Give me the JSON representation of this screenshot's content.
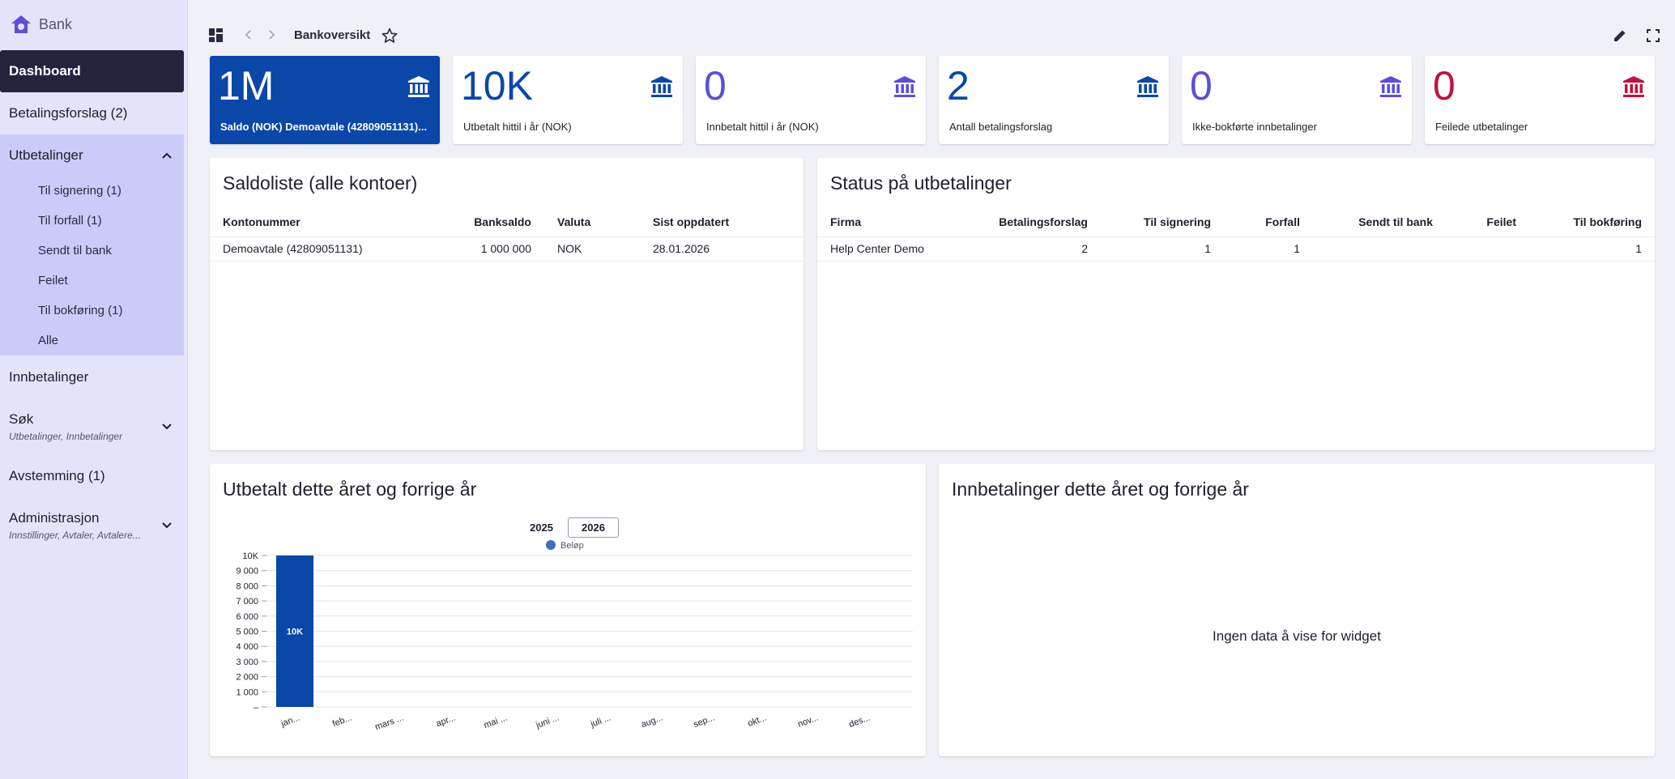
{
  "app": {
    "name": "Bank"
  },
  "sidebar": {
    "dashboard": "Dashboard",
    "betalingsforslag": "Betalingsforslag (2)",
    "utbetalinger": "Utbetalinger",
    "utbetalinger_items": [
      "Til signering (1)",
      "Til forfall (1)",
      "Sendt til bank",
      "Feilet",
      "Til bokføring (1)",
      "Alle"
    ],
    "innbetalinger": "Innbetalinger",
    "sok": "Søk",
    "sok_sub": "Utbetalinger, Innbetalinger",
    "avstemming": "Avstemming (1)",
    "administrasjon": "Administrasjon",
    "administrasjon_sub": "Innstillinger, Avtaler, Avtalere..."
  },
  "topbar": {
    "breadcrumb": "Bankoversikt"
  },
  "kpis": [
    {
      "value": "1M",
      "label": "Saldo (NOK) Demoavtale (42809051131)...",
      "icon_color": "#ffffff"
    },
    {
      "value": "10K",
      "label": "Utbetalt hittil i år (NOK)",
      "icon_color": "#0a47a8"
    },
    {
      "value": "0",
      "label": "Innbetalt hittil i år (NOK)",
      "icon_color": "#5b4fd6"
    },
    {
      "value": "2",
      "label": "Antall betalingsforslag",
      "icon_color": "#0a47a8"
    },
    {
      "value": "0",
      "label": "Ikke-bokførte innbetalinger",
      "icon_color": "#5b4fd6"
    },
    {
      "value": "0",
      "label": "Feilede utbetalinger",
      "icon_color": "#c0133d"
    }
  ],
  "kpi_value_colors": [
    "#ffffff",
    "#0a47a8",
    "#5b4fd6",
    "#0a47a8",
    "#5b4fd6",
    "#c0133d"
  ],
  "saldoliste": {
    "title": "Saldoliste (alle kontoer)",
    "headers": [
      "Kontonummer",
      "Banksaldo",
      "Valuta",
      "Sist oppdatert"
    ],
    "rows": [
      [
        "Demoavtale (42809051131)",
        "1 000 000",
        "NOK",
        "28.01.2026"
      ]
    ]
  },
  "status": {
    "title": "Status på utbetalinger",
    "headers": [
      "Firma",
      "Betalingsforslag",
      "Til signering",
      "Forfall",
      "Sendt til bank",
      "Feilet",
      "Til bokføring"
    ],
    "rows": [
      [
        "Help Center Demo",
        "2",
        "1",
        "1",
        "",
        "",
        "1"
      ]
    ]
  },
  "utbetalt": {
    "title": "Utbetalt dette året og forrige år",
    "years": [
      "2025",
      "2026"
    ],
    "selected_year": "2026"
  },
  "innbetalinger": {
    "title": "Innbetalinger dette året og forrige år",
    "empty": "Ingen data å vise for widget"
  },
  "chart_data": {
    "type": "bar",
    "categories": [
      "jan...",
      "feb...",
      "mars ...",
      "apr...",
      "mai ...",
      "juni ...",
      "juli ...",
      "aug...",
      "sep...",
      "okt...",
      "nov...",
      "des..."
    ],
    "series": [
      {
        "name": "Beløp",
        "values": [
          10000,
          0,
          0,
          0,
          0,
          0,
          0,
          0,
          0,
          0,
          0,
          0
        ]
      }
    ],
    "data_labels": [
      "10K",
      "",
      "",
      "",
      "",
      "",
      "",
      "",
      "",
      "",
      "",
      ""
    ],
    "ylim": [
      0,
      10000
    ],
    "y_ticks": [
      "–",
      "1 000",
      "2 000",
      "3 000",
      "4 000",
      "5 000",
      "6 000",
      "7 000",
      "8 000",
      "9 000",
      "10K"
    ],
    "legend": "top-center",
    "grid": true,
    "bar_color": "#0a47a8",
    "legend_color": "#3f6fb5"
  }
}
